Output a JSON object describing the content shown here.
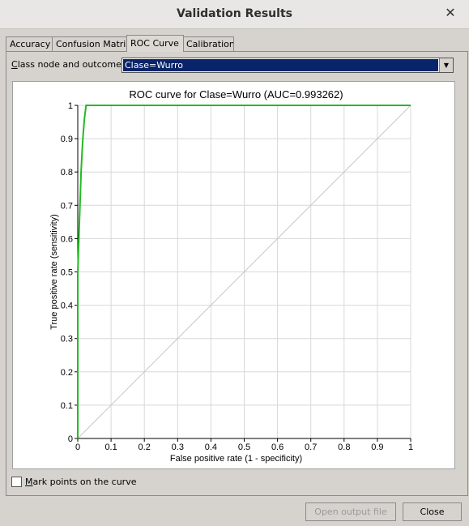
{
  "window": {
    "title": "Validation Results",
    "close_glyph": "✕"
  },
  "tabs": [
    {
      "label": "Accuracy"
    },
    {
      "label": "Confusion Matrix"
    },
    {
      "label": "ROC Curve"
    },
    {
      "label": "Calibration"
    }
  ],
  "active_tab": "ROC Curve",
  "class_selector": {
    "label_accel": "C",
    "label_rest": "lass node and outcome",
    "value": "Clase=Wurro"
  },
  "chart_data": {
    "type": "line",
    "title": "ROC curve for Clase=Wurro (AUC=0.993262)",
    "xlabel": "False positive rate (1 - specificity)",
    "ylabel": "True positive rate (sensitivity)",
    "xlim": [
      0,
      1
    ],
    "ylim": [
      0,
      1
    ],
    "x_ticks": [
      "0",
      "0.1",
      "0.2",
      "0.3",
      "0.4",
      "0.5",
      "0.6",
      "0.7",
      "0.8",
      "0.9",
      "1"
    ],
    "y_ticks": [
      "0",
      "0.1",
      "0.2",
      "0.3",
      "0.4",
      "0.5",
      "0.6",
      "0.7",
      "0.8",
      "0.9",
      "1"
    ],
    "grid": true,
    "series": [
      {
        "color": "#22bb22",
        "x": [
          0,
          0,
          0.002,
          0.004,
          0.006,
          0.008,
          0.01,
          0.013,
          0.016,
          0.02,
          0.025,
          0.03,
          1
        ],
        "y": [
          0,
          0.49,
          0.56,
          0.62,
          0.68,
          0.74,
          0.8,
          0.86,
          0.91,
          0.96,
          1,
          1,
          1
        ]
      }
    ],
    "diagonal": {
      "color": "#c8c8c8",
      "x": [
        0,
        1
      ],
      "y": [
        0,
        1
      ]
    }
  },
  "mark_points": {
    "accel": "M",
    "label_rest": "ark points on the curve",
    "checked": false
  },
  "buttons": {
    "open_output": "Open output file",
    "close": "Close"
  }
}
